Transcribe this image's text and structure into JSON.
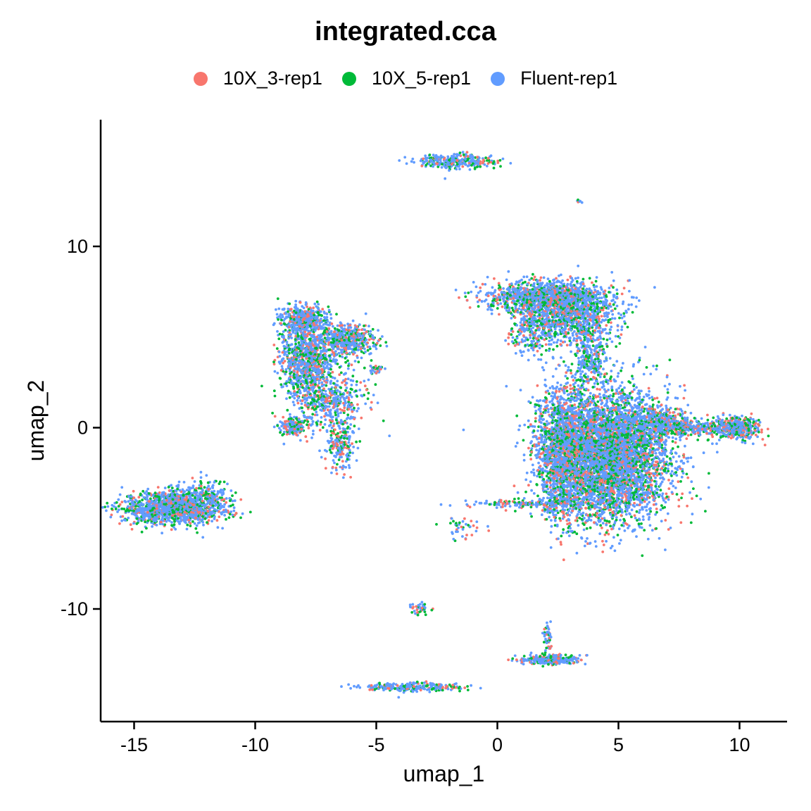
{
  "chart_data": {
    "type": "scatter",
    "title": "integrated.cca",
    "xlabel": "umap_1",
    "ylabel": "umap_2",
    "xlim": [
      -16.2,
      12.2
    ],
    "ylim": [
      -16.0,
      17.0
    ],
    "xticks": [
      -15,
      -10,
      -5,
      0,
      5,
      10
    ],
    "yticks": [
      -10,
      0,
      10
    ],
    "xtick_labels": [
      "-15",
      "-10",
      "-5",
      "0",
      "5",
      "10"
    ],
    "ytick_labels": [
      "-10",
      "0",
      "10"
    ],
    "legend_position": "top",
    "grid": false,
    "series": [
      {
        "name": "10X_3-rep1",
        "color": "#F8766D"
      },
      {
        "name": "10X_5-rep1",
        "color": "#00BA38"
      },
      {
        "name": "Fluent-rep1",
        "color": "#619CFF"
      }
    ],
    "clusters": [
      {
        "center": [
          -13.5,
          -4.4
        ],
        "spread": [
          1.0,
          0.45
        ],
        "count": 1300
      },
      {
        "center": [
          -12.0,
          -4.0
        ],
        "spread": [
          0.5,
          0.6
        ],
        "count": 250
      },
      {
        "center": [
          -8.0,
          6.0
        ],
        "spread": [
          0.45,
          0.35
        ],
        "count": 450
      },
      {
        "center": [
          -7.9,
          3.8
        ],
        "spread": [
          0.55,
          1.0
        ],
        "count": 900
      },
      {
        "center": [
          -6.2,
          4.8
        ],
        "spread": [
          0.55,
          0.45
        ],
        "count": 450
      },
      {
        "center": [
          -7.0,
          1.6
        ],
        "spread": [
          0.8,
          0.9
        ],
        "count": 500
      },
      {
        "center": [
          -8.5,
          0.0
        ],
        "spread": [
          0.25,
          0.25
        ],
        "count": 150
      },
      {
        "center": [
          -6.5,
          -1.0
        ],
        "spread": [
          0.3,
          0.7
        ],
        "count": 200
      },
      {
        "center": [
          -5.0,
          3.2
        ],
        "spread": [
          0.2,
          0.12
        ],
        "count": 40
      },
      {
        "center": [
          -1.7,
          14.7
        ],
        "spread": [
          0.8,
          0.2
        ],
        "count": 300
      },
      {
        "center": [
          3.4,
          12.5
        ],
        "spread": [
          0.04,
          0.04
        ],
        "count": 8
      },
      {
        "center": [
          2.2,
          7.2
        ],
        "spread": [
          1.3,
          0.45
        ],
        "count": 1300
      },
      {
        "center": [
          3.2,
          6.0
        ],
        "spread": [
          0.8,
          0.6
        ],
        "count": 700
      },
      {
        "center": [
          1.5,
          5.4
        ],
        "spread": [
          0.5,
          0.7
        ],
        "count": 300
      },
      {
        "center": [
          3.8,
          4.0
        ],
        "spread": [
          0.4,
          0.8
        ],
        "count": 250
      },
      {
        "center": [
          4.6,
          -1.5
        ],
        "spread": [
          1.25,
          1.8
        ],
        "count": 5000
      },
      {
        "center": [
          2.7,
          -1.2
        ],
        "spread": [
          0.55,
          1.8
        ],
        "count": 1400
      },
      {
        "center": [
          6.6,
          0.3
        ],
        "spread": [
          0.6,
          0.4
        ],
        "count": 300
      },
      {
        "center": [
          8.2,
          0.0
        ],
        "spread": [
          0.8,
          0.22
        ],
        "count": 300
      },
      {
        "center": [
          9.9,
          -0.05
        ],
        "spread": [
          0.45,
          0.3
        ],
        "count": 400
      },
      {
        "center": [
          1.6,
          -4.2
        ],
        "spread": [
          1.4,
          0.1
        ],
        "count": 180
      },
      {
        "center": [
          -1.3,
          -5.6
        ],
        "spread": [
          0.5,
          0.35
        ],
        "count": 40
      },
      {
        "center": [
          -3.2,
          -10.0
        ],
        "spread": [
          0.25,
          0.15
        ],
        "count": 40
      },
      {
        "center": [
          -3.5,
          -14.3
        ],
        "spread": [
          1.0,
          0.12
        ],
        "count": 250
      },
      {
        "center": [
          2.2,
          -12.8
        ],
        "spread": [
          0.6,
          0.12
        ],
        "count": 300
      },
      {
        "center": [
          2.1,
          -11.6
        ],
        "spread": [
          0.1,
          0.5
        ],
        "count": 50
      }
    ]
  }
}
